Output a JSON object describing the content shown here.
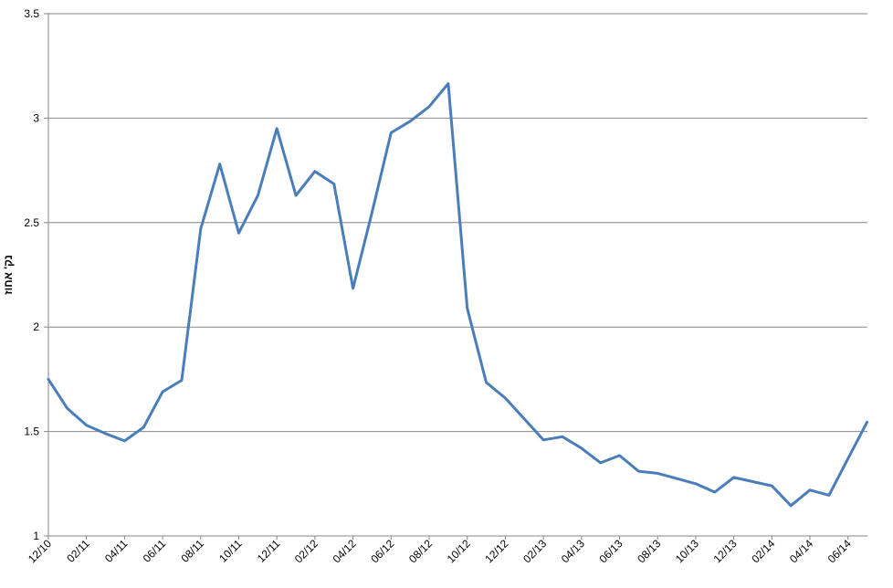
{
  "chart_data": {
    "type": "line",
    "title": "",
    "ylabel": "נק' אחוז",
    "xlabel": "",
    "ylim": [
      1,
      3.5
    ],
    "yticks": [
      1,
      1.5,
      2,
      2.5,
      3,
      3.5
    ],
    "ytick_labels": [
      "1",
      "1.5",
      "2",
      "2.5",
      "3",
      "3.5"
    ],
    "grid": "horizontal",
    "legend": "none",
    "x": [
      "12/10",
      "01/11",
      "02/11",
      "03/11",
      "04/11",
      "05/11",
      "06/11",
      "07/11",
      "08/11",
      "09/11",
      "10/11",
      "11/11",
      "12/11",
      "01/12",
      "02/12",
      "03/12",
      "04/12",
      "05/12",
      "06/12",
      "07/12",
      "08/12",
      "09/12",
      "10/12",
      "11/12",
      "12/12",
      "01/13",
      "02/13",
      "03/13",
      "04/13",
      "05/13",
      "06/13",
      "07/13",
      "08/13",
      "09/13",
      "10/13",
      "11/13",
      "12/13",
      "01/14",
      "02/14",
      "03/14",
      "04/14",
      "05/14",
      "06/14",
      "07/14"
    ],
    "xtick_labels": [
      "12/10",
      "02/11",
      "04/11",
      "06/11",
      "08/11",
      "10/11",
      "12/11",
      "02/12",
      "04/12",
      "06/12",
      "08/12",
      "10/12",
      "12/12",
      "02/13",
      "04/13",
      "06/13",
      "08/13",
      "10/13",
      "12/13",
      "02/14",
      "04/14",
      "06/14"
    ],
    "series": [
      {
        "color": "#4A7EBB",
        "values": [
          1.75,
          1.61,
          1.53,
          1.49,
          1.455,
          1.52,
          1.69,
          1.745,
          2.47,
          2.78,
          2.45,
          2.63,
          2.95,
          2.63,
          2.745,
          2.685,
          2.185,
          2.55,
          2.93,
          2.985,
          3.055,
          3.165,
          2.09,
          1.735,
          1.66,
          1.56,
          1.46,
          1.475,
          1.42,
          1.35,
          1.385,
          1.31,
          1.3,
          1.275,
          1.25,
          1.21,
          1.28,
          1.26,
          1.24,
          1.145,
          1.22,
          1.195,
          1.37,
          1.545
        ]
      }
    ]
  }
}
